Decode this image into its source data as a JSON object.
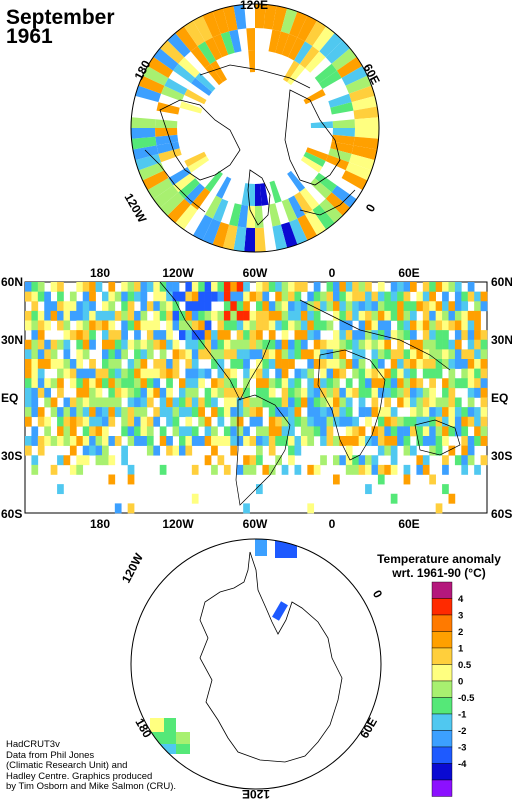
{
  "title": {
    "line1": "September",
    "line2": "1961"
  },
  "credit": {
    "line1": "HadCRUT3v",
    "line2": "Data from Phil Jones",
    "line3": "(Climatic Research Unit) and",
    "line4": "Hadley Centre.  Graphics produced",
    "line5": "by Tim Osborn and Mike Salmon (CRU)."
  },
  "north_polar": {
    "lon_labels": [
      "120E",
      "60E",
      "0",
      "120W",
      "180"
    ]
  },
  "main_map": {
    "top_lon_labels": [
      "180",
      "120W",
      "60W",
      "0",
      "60E"
    ],
    "bottom_lon_labels": [
      "180",
      "120W",
      "60W",
      "0",
      "60E"
    ],
    "left_lat_labels": [
      "60N",
      "30N",
      "EQ",
      "30S",
      "60S"
    ],
    "right_lat_labels": [
      "60N",
      "30N",
      "EQ",
      "30S",
      "60S"
    ]
  },
  "south_polar": {
    "lon_labels": [
      "120W",
      "0",
      "60E",
      "180",
      "120E"
    ]
  },
  "legend": {
    "title_line1": "Temperature anomaly",
    "title_line2": "wrt. 1961-90  (°C)",
    "labels": [
      "4",
      "3",
      "2",
      "1",
      "0.5",
      "0",
      "-0.5",
      "-1",
      "-2",
      "-3",
      "-4"
    ],
    "colors": [
      "#b4187c",
      "#ff2a00",
      "#ff7a00",
      "#ffa000",
      "#ffcf3c",
      "#ffff80",
      "#a8f070",
      "#55e878",
      "#50c8f0",
      "#3ca0ff",
      "#1e5aff",
      "#0a0ad2",
      "#8c10ff"
    ]
  }
}
